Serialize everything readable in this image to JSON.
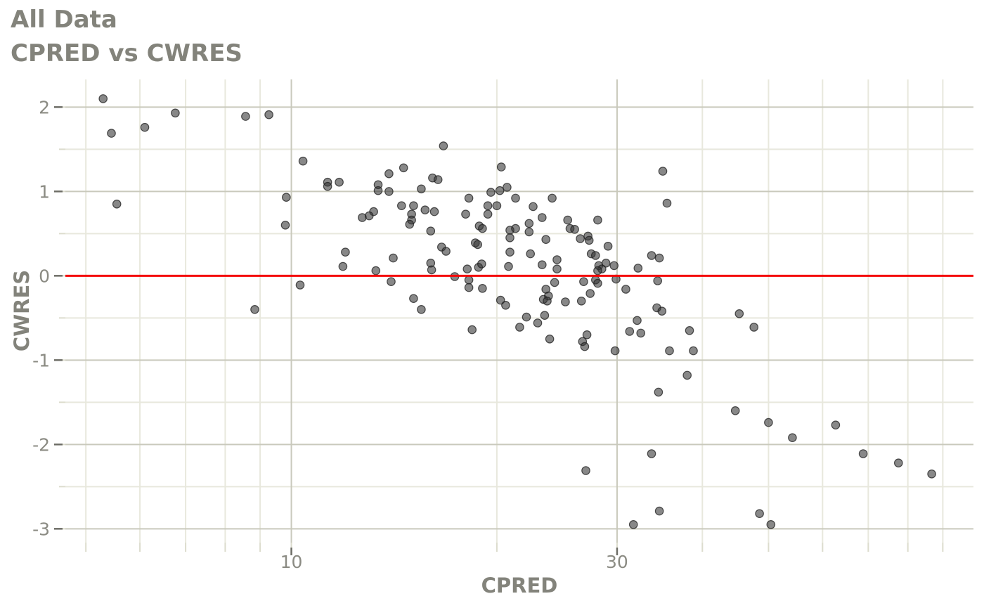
{
  "titles": {
    "line1": "All Data",
    "line2": "CPRED vs CWRES"
  },
  "axes": {
    "x_label": "CPRED",
    "y_label": "CWRES"
  },
  "chart_data": {
    "type": "scatter",
    "title": "All Data",
    "subtitle": "CPRED vs CWRES",
    "xlabel": "CPRED",
    "ylabel": "CWRES",
    "x_scale": "log10",
    "xlim": [
      4.666,
      99.81
    ],
    "ylim": [
      -3.164,
      2.328
    ],
    "x_major_ticks": [
      10,
      30
    ],
    "x_minor_ticks": [
      5,
      6,
      7,
      8,
      9,
      20,
      40,
      50,
      60,
      70,
      80,
      90
    ],
    "y_major_ticks": [
      2,
      1,
      0,
      -1,
      -2,
      -3
    ],
    "y_minor_ticks": [
      1.5,
      0.5,
      -0.5,
      -1.5,
      -2.5
    ],
    "reference_line_y": 0,
    "grid": true,
    "legend_position": "none",
    "colors": {
      "point_fill": "#323232",
      "point_stroke": "#1e1e1e",
      "point_opacity": 0.58,
      "reference_line": "#f40404",
      "grid_major": "#c9c9bc",
      "grid_minor": "#e8e8dd",
      "tick_major": "#6d6d66",
      "tick_minor": "#dcdccd",
      "tick_label": "#8b8b83",
      "background": "#ffffff"
    },
    "points": [
      [
        5.3,
        2.1
      ],
      [
        6.76,
        1.93
      ],
      [
        6.1,
        1.76
      ],
      [
        5.45,
        1.69
      ],
      [
        8.57,
        1.89
      ],
      [
        9.27,
        1.91
      ],
      [
        10.4,
        1.36
      ],
      [
        5.55,
        0.85
      ],
      [
        9.83,
        0.93
      ],
      [
        9.8,
        0.6
      ],
      [
        10.3,
        -0.11
      ],
      [
        8.84,
        -0.4
      ],
      [
        16.7,
        1.54
      ],
      [
        14.6,
        1.28
      ],
      [
        13.9,
        1.21
      ],
      [
        16.1,
        1.16
      ],
      [
        16.4,
        1.14
      ],
      [
        11.3,
        1.11
      ],
      [
        11.3,
        1.06
      ],
      [
        11.75,
        1.11
      ],
      [
        13.4,
        1.08
      ],
      [
        13.4,
        1.01
      ],
      [
        13.9,
        1.0
      ],
      [
        15.5,
        1.03
      ],
      [
        19.6,
        0.99
      ],
      [
        20.2,
        1.01
      ],
      [
        20.7,
        1.05
      ],
      [
        20.3,
        1.29
      ],
      [
        18.2,
        0.92
      ],
      [
        14.5,
        0.83
      ],
      [
        15.1,
        0.83
      ],
      [
        15.7,
        0.78
      ],
      [
        16.2,
        0.76
      ],
      [
        13.2,
        0.76
      ],
      [
        13.0,
        0.71
      ],
      [
        12.7,
        0.69
      ],
      [
        18.0,
        0.73
      ],
      [
        19.4,
        0.83
      ],
      [
        20.0,
        0.83
      ],
      [
        19.4,
        0.73
      ],
      [
        15.0,
        0.73
      ],
      [
        15.0,
        0.66
      ],
      [
        14.9,
        0.61
      ],
      [
        18.85,
        0.59
      ],
      [
        19.05,
        0.56
      ],
      [
        16.0,
        0.53
      ],
      [
        18.6,
        0.39
      ],
      [
        18.75,
        0.37
      ],
      [
        16.6,
        0.34
      ],
      [
        16.85,
        0.29
      ],
      [
        12.0,
        0.28
      ],
      [
        14.1,
        0.21
      ],
      [
        11.9,
        0.11
      ],
      [
        16.0,
        0.15
      ],
      [
        16.05,
        0.07
      ],
      [
        13.3,
        0.06
      ],
      [
        18.1,
        0.08
      ],
      [
        18.8,
        0.1
      ],
      [
        19.0,
        0.14
      ],
      [
        17.35,
        -0.01
      ],
      [
        18.2,
        -0.05
      ],
      [
        14.0,
        -0.07
      ],
      [
        18.2,
        -0.14
      ],
      [
        19.05,
        -0.15
      ],
      [
        15.1,
        -0.27
      ],
      [
        15.5,
        -0.4
      ],
      [
        18.4,
        -0.64
      ],
      [
        35.0,
        1.24
      ],
      [
        21.3,
        0.92
      ],
      [
        24.1,
        0.92
      ],
      [
        35.5,
        0.86
      ],
      [
        22.6,
        0.82
      ],
      [
        23.3,
        0.69
      ],
      [
        25.4,
        0.66
      ],
      [
        28.1,
        0.66
      ],
      [
        22.3,
        0.62
      ],
      [
        25.6,
        0.56
      ],
      [
        26.0,
        0.55
      ],
      [
        20.9,
        0.54
      ],
      [
        21.3,
        0.56
      ],
      [
        22.3,
        0.52
      ],
      [
        20.9,
        0.45
      ],
      [
        23.6,
        0.43
      ],
      [
        26.5,
        0.44
      ],
      [
        27.2,
        0.47
      ],
      [
        27.3,
        0.42
      ],
      [
        29.1,
        0.35
      ],
      [
        20.9,
        0.28
      ],
      [
        22.4,
        0.26
      ],
      [
        27.5,
        0.26
      ],
      [
        27.9,
        0.24
      ],
      [
        33.7,
        0.24
      ],
      [
        34.6,
        0.21
      ],
      [
        24.5,
        0.19
      ],
      [
        28.9,
        0.15
      ],
      [
        23.3,
        0.13
      ],
      [
        20.8,
        0.11
      ],
      [
        28.2,
        0.12
      ],
      [
        28.5,
        0.08
      ],
      [
        28.1,
        0.06
      ],
      [
        24.5,
        0.08
      ],
      [
        29.7,
        0.12
      ],
      [
        32.2,
        0.09
      ],
      [
        29.9,
        -0.04
      ],
      [
        34.4,
        -0.06
      ],
      [
        27.9,
        -0.05
      ],
      [
        28.1,
        -0.09
      ],
      [
        26.8,
        -0.07
      ],
      [
        24.3,
        -0.08
      ],
      [
        30.9,
        -0.16
      ],
      [
        27.4,
        -0.21
      ],
      [
        23.6,
        -0.16
      ],
      [
        23.8,
        -0.24
      ],
      [
        23.4,
        -0.28
      ],
      [
        23.7,
        -0.3
      ],
      [
        20.25,
        -0.29
      ],
      [
        20.6,
        -0.35
      ],
      [
        25.2,
        -0.31
      ],
      [
        26.6,
        -0.3
      ],
      [
        34.3,
        -0.38
      ],
      [
        34.9,
        -0.42
      ],
      [
        22.1,
        -0.49
      ],
      [
        23.5,
        -0.47
      ],
      [
        22.95,
        -0.56
      ],
      [
        21.6,
        -0.61
      ],
      [
        32.1,
        -0.53
      ],
      [
        31.3,
        -0.66
      ],
      [
        32.5,
        -0.68
      ],
      [
        38.3,
        -0.65
      ],
      [
        23.9,
        -0.75
      ],
      [
        27.1,
        -0.7
      ],
      [
        26.7,
        -0.78
      ],
      [
        26.9,
        -0.84
      ],
      [
        29.8,
        -0.89
      ],
      [
        35.8,
        -0.89
      ],
      [
        38.8,
        -0.89
      ],
      [
        38.0,
        -1.18
      ],
      [
        34.5,
        -1.38
      ],
      [
        33.7,
        -2.11
      ],
      [
        27.0,
        -2.31
      ],
      [
        34.6,
        -2.79
      ],
      [
        31.7,
        -2.95
      ],
      [
        45.3,
        -0.45
      ],
      [
        47.6,
        -0.61
      ],
      [
        44.7,
        -1.6
      ],
      [
        50.0,
        -1.74
      ],
      [
        54.2,
        -1.92
      ],
      [
        62.7,
        -1.77
      ],
      [
        68.8,
        -2.11
      ],
      [
        77.5,
        -2.22
      ],
      [
        86.7,
        -2.35
      ],
      [
        48.5,
        -2.82
      ],
      [
        50.4,
        -2.95
      ]
    ]
  }
}
